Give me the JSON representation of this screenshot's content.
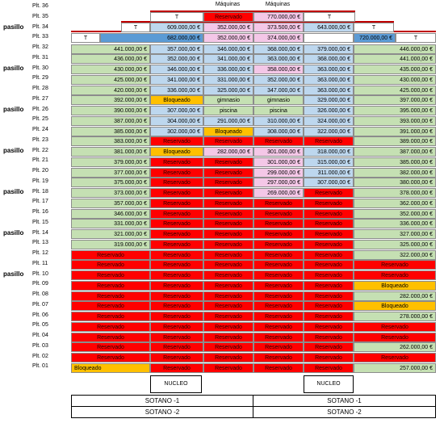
{
  "side_label": "pasillo",
  "top_labels": {
    "maquinas_1": "Máquinas",
    "maquinas_2": "Máquinas"
  },
  "floors": [
    "Plt. 36",
    "Plt. 35",
    "Plt. 34",
    "Plt. 33",
    "Plt. 32",
    "Plt. 31",
    "Plt. 30",
    "Plt. 29",
    "Plt. 28",
    "Plt. 27",
    "Plt. 26",
    "Plt. 25",
    "Plt. 24",
    "Plt. 23",
    "Plt. 22",
    "Plt. 21",
    "Plt. 20",
    "Plt. 19",
    "Plt. 18",
    "Plt. 17",
    "Plt. 16",
    "Plt. 15",
    "Plt. 14",
    "Plt. 13",
    "Plt. 12",
    "Plt. 11",
    "Plt. 10",
    "Plt. 09",
    "Plt. 08",
    "Plt. 07",
    "Plt. 06",
    "Plt. 05",
    "Plt. 04",
    "Plt. 03",
    "Plt. 02",
    "Plt. 01"
  ],
  "pasillo_rows": [
    2,
    6,
    10,
    14,
    18,
    22,
    26
  ],
  "row35": {
    "c2": "T",
    "c3": "Reservado",
    "c4": "770.000,00 €",
    "c5": "T"
  },
  "row34": {
    "c1": "T",
    "c2": "609.000,00 €",
    "c3": "352.000,00 €",
    "c4": "373.500,00 €",
    "c5": "643.000,00 €",
    "c6": "T"
  },
  "row33": {
    "c1": "T",
    "c2": "682.000,00 €",
    "c3": "352.000,00 €",
    "c4": "374.000,00 €",
    "c6a": "720.000,00 €",
    "c6b": "T"
  },
  "rows": [
    [
      "441.000,00 €",
      "357.000,00 €",
      "346.000,00 €",
      "368.000,00 €",
      "379.000,00 €",
      "446.000,00 €"
    ],
    [
      "436.000,00 €",
      "352.000,00 €",
      "341.000,00 €",
      "363.000,00 €",
      "368.000,00 €",
      "441.000,00 €"
    ],
    [
      "430.000,00 €",
      "346.000,00 €",
      "336.000,00 €",
      "358.000,00 €",
      "363.000,00 €",
      "435.000,00 €"
    ],
    [
      "425.000,00 €",
      "341.000,00 €",
      "331.000,00 €",
      "352.000,00 €",
      "363.000,00 €",
      "430.000,00 €"
    ],
    [
      "420.000,00 €",
      "336.000,00 €",
      "325.000,00 €",
      "347.000,00 €",
      "363.000,00 €",
      "425.000,00 €"
    ],
    [
      "392.000,00 €",
      "Bloqueado",
      "gimnasio",
      "gimnasio",
      "329.000,00 €",
      "397.000,00 €"
    ],
    [
      "390.000,00 €",
      "307.000,00 €",
      "piscina",
      "piscina",
      "326.000,00 €",
      "395.000,00 €"
    ],
    [
      "387.000,00 €",
      "304.000,00 €",
      "291.000,00 €",
      "310.000,00 €",
      "324.000,00 €",
      "393.000,00 €"
    ],
    [
      "385.000,00 €",
      "302.000,00 €",
      "Bloqueado",
      "308.000,00 €",
      "322.000,00 €",
      "391.000,00 €"
    ],
    [
      "383.000,00 €",
      "Reservado",
      "Reservado",
      "Reservado",
      "Reservado",
      "389.000,00 €"
    ],
    [
      "381.000,00 €",
      "Bloqueado",
      "282.000,00 €",
      "301.000,00 €",
      "318.000,00 €",
      "387.000,00 €"
    ],
    [
      "379.000,00 €",
      "Reservado",
      "Reservado",
      "301.000,00 €",
      "315.000,00 €",
      "385.000,00 €"
    ],
    [
      "377.000,00 €",
      "Reservado",
      "Reservado",
      "299.000,00 €",
      "311.000,00 €",
      "382.000,00 €"
    ],
    [
      "375.000,00 €",
      "Reservado",
      "Reservado",
      "297.000,00 €",
      "307.000,00 €",
      "380.000,00 €"
    ],
    [
      "373.000,00 €",
      "Reservado",
      "Reservado",
      "269.000,00 €",
      "Reservado",
      "378.000,00 €"
    ],
    [
      "357.000,00 €",
      "Reservado",
      "Reservado",
      "Reservado",
      "Reservado",
      "362.000,00 €"
    ],
    [
      "346.000,00 €",
      "Reservado",
      "Reservado",
      "Reservado",
      "Reservado",
      "352.000,00 €"
    ],
    [
      "331.000,00 €",
      "Reservado",
      "Reservado",
      "Reservado",
      "Reservado",
      "336.000,00 €"
    ],
    [
      "321.000,00 €",
      "Reservado",
      "Reservado",
      "Reservado",
      "Reservado",
      "327.000,00 €"
    ],
    [
      "319.000,00 €",
      "Reservado",
      "Reservado",
      "Reservado",
      "Reservado",
      "325.000,00 €"
    ],
    [
      "Reservado",
      "Reservado",
      "Reservado",
      "Reservado",
      "Reservado",
      "322.000,00 €"
    ],
    [
      "Reservado",
      "Reservado",
      "Reservado",
      "Reservado",
      "Reservado",
      "Reservado"
    ],
    [
      "Reservado",
      "Reservado",
      "Reservado",
      "Reservado",
      "Reservado",
      "Reservado"
    ],
    [
      "Reservado",
      "Reservado",
      "Reservado",
      "Reservado",
      "Reservado",
      "Bloqueado"
    ],
    [
      "Reservado",
      "Reservado",
      "Reservado",
      "Reservado",
      "Reservado",
      "282.000,00 €"
    ],
    [
      "Reservado",
      "Reservado",
      "Reservado",
      "Reservado",
      "Reservado",
      "Bloqueado"
    ],
    [
      "Reservado",
      "Reservado",
      "Reservado",
      "Reservado",
      "Reservado",
      "278.000,00 €"
    ],
    [
      "Reservado",
      "Reservado",
      "Reservado",
      "Reservado",
      "Reservado",
      "Reservado"
    ],
    [
      "Reservado",
      "Reservado",
      "Reservado",
      "Reservado",
      "Reservado",
      "Reservado"
    ],
    [
      "Reservado",
      "Reservado",
      "Reservado",
      "Reservado",
      "Reservado",
      "262.000,00 €"
    ],
    [
      "Reservado",
      "Reservado",
      "Reservado",
      "Reservado",
      "Reservado",
      "Reservado"
    ],
    [
      "Bloqueado",
      "Reservado",
      "Reservado",
      "Reservado",
      "Reservado",
      "257.000,00 €"
    ]
  ],
  "nucleo": [
    "NUCLEO",
    "NUCLEO"
  ],
  "basements": {
    "s1_left": "SOTANO -1",
    "s1_right": "SOTANO -1",
    "s2_left": "SOTANO -2",
    "s2_right": "SOTANO -2"
  }
}
